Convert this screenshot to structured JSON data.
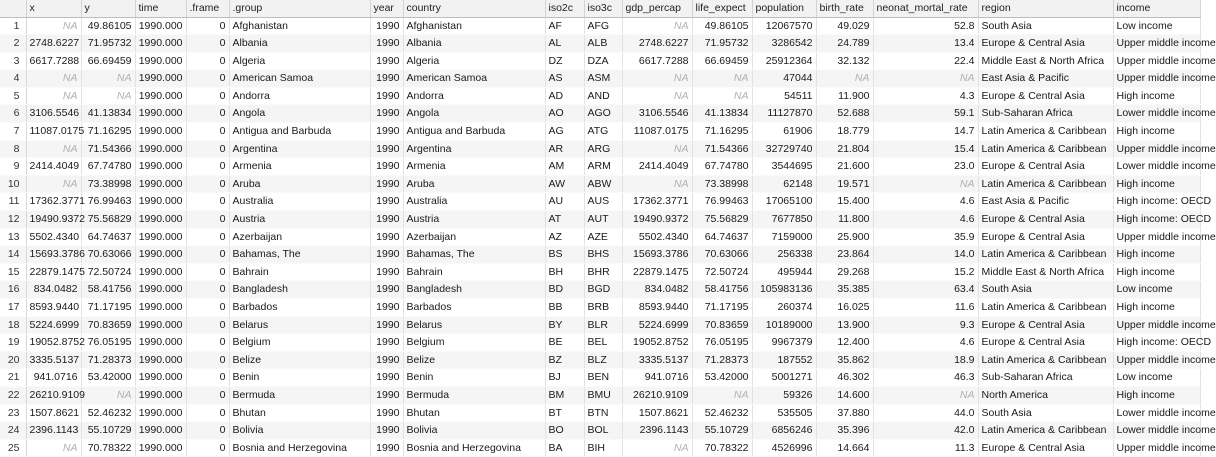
{
  "columns": [
    {
      "key": "rownum",
      "label": "",
      "type": "rn"
    },
    {
      "key": "x",
      "label": "x",
      "type": "num"
    },
    {
      "key": "y",
      "label": "y",
      "type": "num"
    },
    {
      "key": "time",
      "label": "time",
      "type": "num"
    },
    {
      "key": "frame",
      "label": ".frame",
      "type": "num"
    },
    {
      "key": "group",
      "label": ".group",
      "type": "txt"
    },
    {
      "key": "year",
      "label": "year",
      "type": "num"
    },
    {
      "key": "country",
      "label": "country",
      "type": "txt"
    },
    {
      "key": "iso2c",
      "label": "iso2c",
      "type": "txt"
    },
    {
      "key": "iso3c",
      "label": "iso3c",
      "type": "txt"
    },
    {
      "key": "gdp_percap",
      "label": "gdp_percap",
      "type": "num"
    },
    {
      "key": "life_expect",
      "label": "life_expect",
      "type": "num"
    },
    {
      "key": "population",
      "label": "population",
      "type": "num"
    },
    {
      "key": "birth_rate",
      "label": "birth_rate",
      "type": "num"
    },
    {
      "key": "neonat_mortal_rate",
      "label": "neonat_mortal_rate",
      "type": "num"
    },
    {
      "key": "region",
      "label": "region",
      "type": "txt"
    },
    {
      "key": "income",
      "label": "income",
      "type": "txt"
    }
  ],
  "rows": [
    [
      "1",
      "NA",
      "49.86105",
      "1990.000",
      "0",
      "Afghanistan",
      "1990",
      "Afghanistan",
      "AF",
      "AFG",
      "NA",
      "49.86105",
      "12067570",
      "49.029",
      "52.8",
      "South Asia",
      "Low income"
    ],
    [
      "2",
      "2748.6227",
      "71.95732",
      "1990.000",
      "0",
      "Albania",
      "1990",
      "Albania",
      "AL",
      "ALB",
      "2748.6227",
      "71.95732",
      "3286542",
      "24.789",
      "13.4",
      "Europe & Central Asia",
      "Upper middle income"
    ],
    [
      "3",
      "6617.7288",
      "66.69459",
      "1990.000",
      "0",
      "Algeria",
      "1990",
      "Algeria",
      "DZ",
      "DZA",
      "6617.7288",
      "66.69459",
      "25912364",
      "32.132",
      "22.4",
      "Middle East & North Africa",
      "Upper middle income"
    ],
    [
      "4",
      "NA",
      "NA",
      "1990.000",
      "0",
      "American Samoa",
      "1990",
      "American Samoa",
      "AS",
      "ASM",
      "NA",
      "NA",
      "47044",
      "NA",
      "NA",
      "East Asia & Pacific",
      "Upper middle income"
    ],
    [
      "5",
      "NA",
      "NA",
      "1990.000",
      "0",
      "Andorra",
      "1990",
      "Andorra",
      "AD",
      "AND",
      "NA",
      "NA",
      "54511",
      "11.900",
      "4.3",
      "Europe & Central Asia",
      "High income"
    ],
    [
      "6",
      "3106.5546",
      "41.13834",
      "1990.000",
      "0",
      "Angola",
      "1990",
      "Angola",
      "AO",
      "AGO",
      "3106.5546",
      "41.13834",
      "11127870",
      "52.688",
      "59.1",
      "Sub-Saharan Africa",
      "Lower middle income"
    ],
    [
      "7",
      "11087.0175",
      "71.16295",
      "1990.000",
      "0",
      "Antigua and Barbuda",
      "1990",
      "Antigua and Barbuda",
      "AG",
      "ATG",
      "11087.0175",
      "71.16295",
      "61906",
      "18.779",
      "14.7",
      "Latin America & Caribbean",
      "High income"
    ],
    [
      "8",
      "NA",
      "71.54366",
      "1990.000",
      "0",
      "Argentina",
      "1990",
      "Argentina",
      "AR",
      "ARG",
      "NA",
      "71.54366",
      "32729740",
      "21.804",
      "15.4",
      "Latin America & Caribbean",
      "Upper middle income"
    ],
    [
      "9",
      "2414.4049",
      "67.74780",
      "1990.000",
      "0",
      "Armenia",
      "1990",
      "Armenia",
      "AM",
      "ARM",
      "2414.4049",
      "67.74780",
      "3544695",
      "21.600",
      "23.0",
      "Europe & Central Asia",
      "Lower middle income"
    ],
    [
      "10",
      "NA",
      "73.38998",
      "1990.000",
      "0",
      "Aruba",
      "1990",
      "Aruba",
      "AW",
      "ABW",
      "NA",
      "73.38998",
      "62148",
      "19.571",
      "NA",
      "Latin America & Caribbean",
      "High income"
    ],
    [
      "11",
      "17362.3771",
      "76.99463",
      "1990.000",
      "0",
      "Australia",
      "1990",
      "Australia",
      "AU",
      "AUS",
      "17362.3771",
      "76.99463",
      "17065100",
      "15.400",
      "4.6",
      "East Asia & Pacific",
      "High income: OECD"
    ],
    [
      "12",
      "19490.9372",
      "75.56829",
      "1990.000",
      "0",
      "Austria",
      "1990",
      "Austria",
      "AT",
      "AUT",
      "19490.9372",
      "75.56829",
      "7677850",
      "11.800",
      "4.6",
      "Europe & Central Asia",
      "High income: OECD"
    ],
    [
      "13",
      "5502.4340",
      "64.74637",
      "1990.000",
      "0",
      "Azerbaijan",
      "1990",
      "Azerbaijan",
      "AZ",
      "AZE",
      "5502.4340",
      "64.74637",
      "7159000",
      "25.900",
      "35.9",
      "Europe & Central Asia",
      "Upper middle income"
    ],
    [
      "14",
      "15693.3786",
      "70.63066",
      "1990.000",
      "0",
      "Bahamas, The",
      "1990",
      "Bahamas, The",
      "BS",
      "BHS",
      "15693.3786",
      "70.63066",
      "256338",
      "23.864",
      "14.0",
      "Latin America & Caribbean",
      "High income"
    ],
    [
      "15",
      "22879.1475",
      "72.50724",
      "1990.000",
      "0",
      "Bahrain",
      "1990",
      "Bahrain",
      "BH",
      "BHR",
      "22879.1475",
      "72.50724",
      "495944",
      "29.268",
      "15.2",
      "Middle East & North Africa",
      "High income"
    ],
    [
      "16",
      "834.0482",
      "58.41756",
      "1990.000",
      "0",
      "Bangladesh",
      "1990",
      "Bangladesh",
      "BD",
      "BGD",
      "834.0482",
      "58.41756",
      "105983136",
      "35.385",
      "63.4",
      "South Asia",
      "Low income"
    ],
    [
      "17",
      "8593.9440",
      "71.17195",
      "1990.000",
      "0",
      "Barbados",
      "1990",
      "Barbados",
      "BB",
      "BRB",
      "8593.9440",
      "71.17195",
      "260374",
      "16.025",
      "11.6",
      "Latin America & Caribbean",
      "High income"
    ],
    [
      "18",
      "5224.6999",
      "70.83659",
      "1990.000",
      "0",
      "Belarus",
      "1990",
      "Belarus",
      "BY",
      "BLR",
      "5224.6999",
      "70.83659",
      "10189000",
      "13.900",
      "9.3",
      "Europe & Central Asia",
      "Upper middle income"
    ],
    [
      "19",
      "19052.8752",
      "76.05195",
      "1990.000",
      "0",
      "Belgium",
      "1990",
      "Belgium",
      "BE",
      "BEL",
      "19052.8752",
      "76.05195",
      "9967379",
      "12.400",
      "4.6",
      "Europe & Central Asia",
      "High income: OECD"
    ],
    [
      "20",
      "3335.5137",
      "71.28373",
      "1990.000",
      "0",
      "Belize",
      "1990",
      "Belize",
      "BZ",
      "BLZ",
      "3335.5137",
      "71.28373",
      "187552",
      "35.862",
      "18.9",
      "Latin America & Caribbean",
      "Upper middle income"
    ],
    [
      "21",
      "941.0716",
      "53.42000",
      "1990.000",
      "0",
      "Benin",
      "1990",
      "Benin",
      "BJ",
      "BEN",
      "941.0716",
      "53.42000",
      "5001271",
      "46.302",
      "46.3",
      "Sub-Saharan Africa",
      "Low income"
    ],
    [
      "22",
      "26210.9109",
      "NA",
      "1990.000",
      "0",
      "Bermuda",
      "1990",
      "Bermuda",
      "BM",
      "BMU",
      "26210.9109",
      "NA",
      "59326",
      "14.600",
      "NA",
      "North America",
      "High income"
    ],
    [
      "23",
      "1507.8621",
      "52.46232",
      "1990.000",
      "0",
      "Bhutan",
      "1990",
      "Bhutan",
      "BT",
      "BTN",
      "1507.8621",
      "52.46232",
      "535505",
      "37.880",
      "44.0",
      "South Asia",
      "Lower middle income"
    ],
    [
      "24",
      "2396.1143",
      "55.10729",
      "1990.000",
      "0",
      "Bolivia",
      "1990",
      "Bolivia",
      "BO",
      "BOL",
      "2396.1143",
      "55.10729",
      "6856246",
      "35.396",
      "42.0",
      "Latin America & Caribbean",
      "Lower middle income"
    ],
    [
      "25",
      "NA",
      "70.78322",
      "1990.000",
      "0",
      "Bosnia and Herzegovina",
      "1990",
      "Bosnia and Herzegovina",
      "BA",
      "BIH",
      "NA",
      "70.78322",
      "4526996",
      "14.664",
      "11.3",
      "Europe & Central Asia",
      "Upper middle income"
    ]
  ]
}
